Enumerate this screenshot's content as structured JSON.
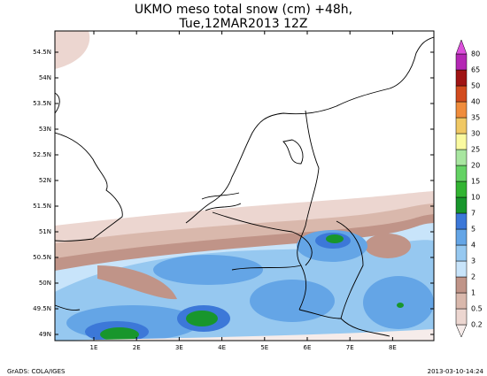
{
  "title": [
    "UKMO meso total snow (cm) +48h,",
    "Tue,12MAR2013 12Z"
  ],
  "lat_labels": [
    "54.5N",
    "54N",
    "53.5N",
    "53N",
    "52.5N",
    "52N",
    "51.5N",
    "51N",
    "50.5N",
    "50N",
    "49.5N",
    "49N"
  ],
  "lon_labels": [
    "1E",
    "2E",
    "3E",
    "4E",
    "5E",
    "6E",
    "7E",
    "8E"
  ],
  "colorbar": {
    "labels": [
      "0.2",
      "0.5",
      "1",
      "2",
      "3",
      "4",
      "5",
      "7",
      "10",
      "15",
      "20",
      "25",
      "30",
      "35",
      "40",
      "50",
      "65",
      "80"
    ],
    "colors": [
      "#f6ecea",
      "#ecd6d0",
      "#d9b8ac",
      "#c09488",
      "#c8e4fa",
      "#96c8f0",
      "#64a5e6",
      "#3c78d8",
      "#18962c",
      "#32b432",
      "#64d264",
      "#a8e6a0",
      "#fafaa0",
      "#f0c864",
      "#f08c3c",
      "#d24b1e",
      "#a01414",
      "#b428b4",
      "#dc50dc"
    ]
  },
  "footer": {
    "left": "GrADS: COLA/IGES",
    "right": "2013-03-10-14:24"
  }
}
